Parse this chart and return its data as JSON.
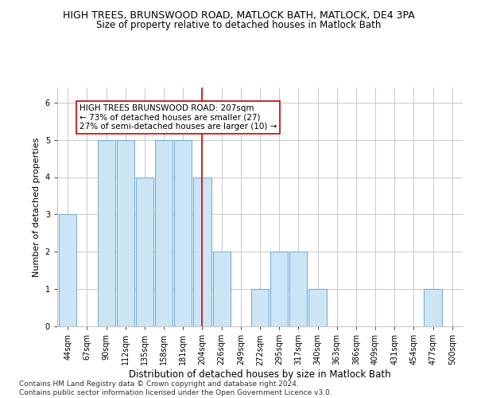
{
  "title": "HIGH TREES, BRUNSWOOD ROAD, MATLOCK BATH, MATLOCK, DE4 3PA",
  "subtitle": "Size of property relative to detached houses in Matlock Bath",
  "xlabel": "Distribution of detached houses by size in Matlock Bath",
  "ylabel": "Number of detached properties",
  "bins": [
    "44sqm",
    "67sqm",
    "90sqm",
    "112sqm",
    "135sqm",
    "158sqm",
    "181sqm",
    "204sqm",
    "226sqm",
    "249sqm",
    "272sqm",
    "295sqm",
    "317sqm",
    "340sqm",
    "363sqm",
    "386sqm",
    "409sqm",
    "431sqm",
    "454sqm",
    "477sqm",
    "500sqm"
  ],
  "values": [
    3,
    0,
    5,
    5,
    4,
    5,
    5,
    4,
    2,
    0,
    1,
    2,
    2,
    1,
    0,
    0,
    0,
    0,
    0,
    1,
    0
  ],
  "bar_color": "#cce5f5",
  "bar_edge_color": "#7bafd4",
  "property_line_x": 7,
  "property_line_color": "#cc0000",
  "annotation_text": "HIGH TREES BRUNSWOOD ROAD: 207sqm\n← 73% of detached houses are smaller (27)\n27% of semi-detached houses are larger (10) →",
  "annotation_box_color": "#ffffff",
  "annotation_box_edge_color": "#cc0000",
  "ylim": [
    0,
    6.4
  ],
  "yticks": [
    0,
    1,
    2,
    3,
    4,
    5,
    6
  ],
  "grid_color": "#c8c8c8",
  "background_color": "#ffffff",
  "footer_text": "Contains HM Land Registry data © Crown copyright and database right 2024.\nContains public sector information licensed under the Open Government Licence v3.0.",
  "title_fontsize": 9,
  "subtitle_fontsize": 8.5,
  "xlabel_fontsize": 8.5,
  "ylabel_fontsize": 8,
  "tick_fontsize": 7,
  "annotation_fontsize": 7.5,
  "footer_fontsize": 6.5
}
